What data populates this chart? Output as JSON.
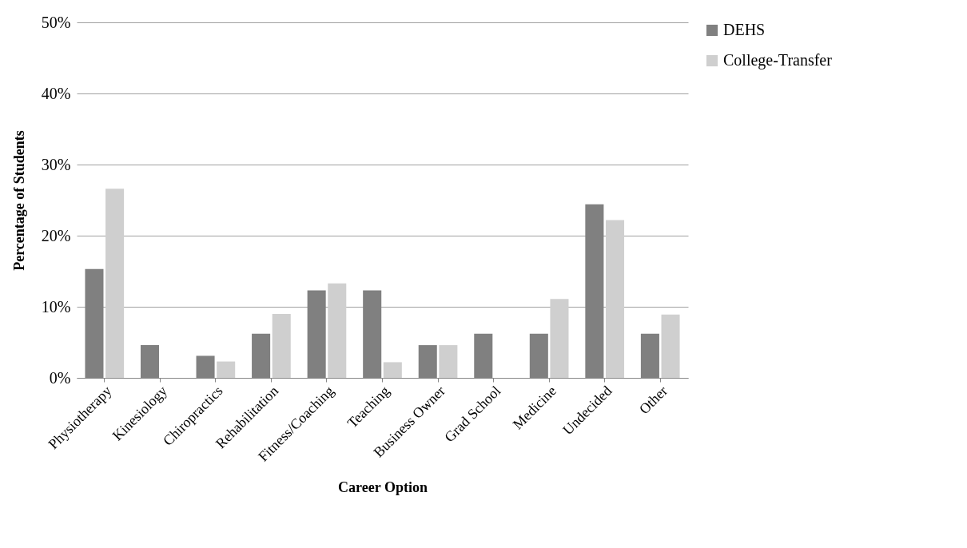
{
  "chart_data": {
    "type": "bar",
    "xlabel": "Career Option",
    "ylabel": "Percentage of Students",
    "categories": [
      "Physiotherapy",
      "Kinesiology",
      "Chiropractics",
      "Rehabilitation",
      "Fitness/Coaching",
      "Teaching",
      "Business Owner",
      "Grad School",
      "Medicine",
      "Undecided",
      "Other"
    ],
    "series": [
      {
        "name": "DEHS",
        "color": "#808080",
        "values": [
          15.3,
          4.6,
          3.1,
          6.2,
          12.3,
          12.3,
          4.6,
          6.2,
          6.2,
          24.4,
          6.2
        ]
      },
      {
        "name": "College-Transfer",
        "color": "#cfcfcf",
        "values": [
          26.6,
          0,
          2.3,
          9.0,
          13.3,
          2.2,
          4.6,
          0,
          11.1,
          22.2,
          8.9
        ]
      }
    ],
    "ylim": [
      0,
      50
    ],
    "yticks": [
      {
        "value": 0,
        "label": "0%"
      },
      {
        "value": 10,
        "label": "10%"
      },
      {
        "value": 20,
        "label": "20%"
      },
      {
        "value": 30,
        "label": "30%"
      },
      {
        "value": 40,
        "label": "40%"
      },
      {
        "value": 50,
        "label": "50%"
      }
    ],
    "grid": "y",
    "legend": "right"
  }
}
